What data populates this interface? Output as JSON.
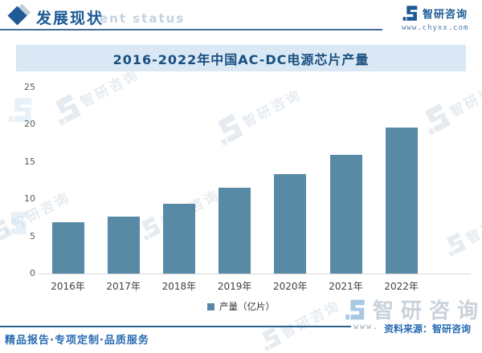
{
  "header": {
    "title": "发展现状",
    "watermark_en": "ent status"
  },
  "brand_top": {
    "name": "智研咨询",
    "url": "www.chyxx.com"
  },
  "chart_data": {
    "type": "bar",
    "title": "2016-2022年中国AC-DC电源芯片产量",
    "categories": [
      "2016年",
      "2017年",
      "2018年",
      "2019年",
      "2020年",
      "2021年",
      "2022年"
    ],
    "values": [
      6.9,
      7.7,
      9.4,
      11.5,
      13.4,
      15.9,
      19.6
    ],
    "series_name": "产量（亿片）",
    "xlabel": "",
    "ylabel": "",
    "ylim": [
      0,
      25
    ],
    "yticks": [
      0,
      5,
      10,
      15,
      20,
      25
    ],
    "grid": false,
    "legend_position": "bottom",
    "bar_color": "#588aa6"
  },
  "legend": {
    "label": "产量（亿片）"
  },
  "footer": {
    "tagline": "精品报告·专项定制·品质服务",
    "www": "www.",
    "source": "资料来源：智研咨询",
    "brand": "智研咨询"
  },
  "watermark": {
    "text": "智研咨询"
  },
  "colors": {
    "bar": "#588aa6",
    "banner_bg": "#d9e8f4",
    "title_text": "#1a4f80",
    "accent_blue": "#2a6cb3",
    "brand_blue": "#1e5a96"
  }
}
